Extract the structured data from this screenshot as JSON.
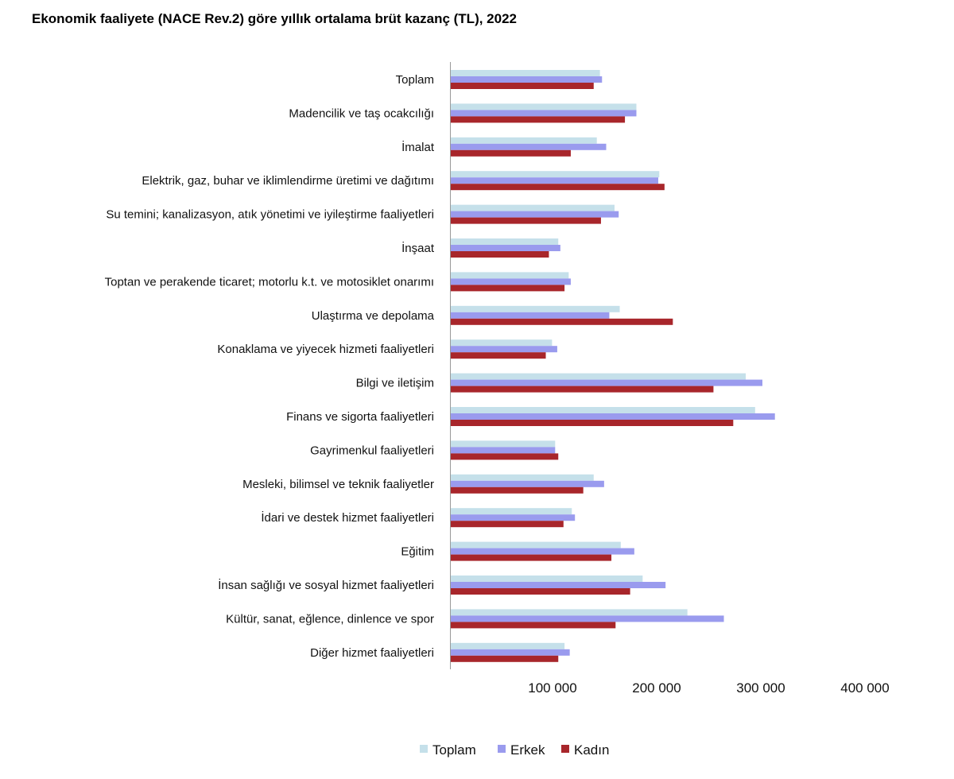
{
  "title": "Ekonomik faaliyete (NACE Rev.2) göre yıllık ortalama brüt kazanç (TL), 2022",
  "colors": {
    "toplam": "#c5e0ea",
    "erkek": "#9a9bee",
    "kadin": "#a8262b",
    "axis": "#9a9a9a"
  },
  "chart_data": {
    "type": "bar",
    "orientation": "horizontal",
    "title": "Ekonomik faaliyete (NACE Rev.2) göre yıllık ortalama brüt kazanç (TL), 2022",
    "xlim": [
      0,
      400000
    ],
    "x_ticks": [
      100000,
      200000,
      300000,
      400000
    ],
    "x_tick_labels": [
      "100 000",
      "200 000",
      "300 000",
      "400 000"
    ],
    "grid": false,
    "legend_position": "bottom",
    "categories": [
      "Toplam",
      "Madencilik ve taş ocakcılığı",
      "İmalat",
      "Elektrik, gaz, buhar ve iklimlendirme üretimi ve dağıtımı",
      "Su temini; kanalizasyon, atık yönetimi ve iyileştirme faaliyetleri",
      "İnşaat",
      "Toptan ve perakende ticaret; motorlu k.t. ve motosiklet onarımı",
      "Ulaştırma ve depolama",
      "Konaklama ve yiyecek hizmeti faaliyetleri",
      "Bilgi ve iletişim",
      "Finans ve sigorta faaliyetleri",
      "Gayrimenkul faaliyetleri",
      "Mesleki, bilimsel ve teknik faaliyetler",
      "İdari ve destek hizmet faaliyetleri",
      "Eğitim",
      "İnsan sağlığı ve sosyal hizmet faaliyetleri",
      "Kültür, sanat, eğlence, dinlence ve spor",
      "Diğer hizmet faaliyetleri"
    ],
    "series": [
      {
        "name": "Toplam",
        "color_key": "toplam",
        "values": [
          144000,
          179000,
          141000,
          201000,
          158000,
          104000,
          114000,
          163000,
          98000,
          284000,
          293000,
          101000,
          138000,
          117000,
          164000,
          185000,
          228000,
          110000
        ]
      },
      {
        "name": "Erkek",
        "color_key": "erkek",
        "values": [
          146000,
          179000,
          150000,
          200000,
          162000,
          106000,
          116000,
          153000,
          103000,
          300000,
          312000,
          101000,
          148000,
          120000,
          177000,
          207000,
          263000,
          115000
        ]
      },
      {
        "name": "Kadın",
        "color_key": "kadin",
        "values": [
          138000,
          168000,
          116000,
          206000,
          145000,
          95000,
          110000,
          214000,
          92000,
          253000,
          272000,
          104000,
          128000,
          109000,
          155000,
          173000,
          159000,
          104000
        ]
      }
    ]
  }
}
